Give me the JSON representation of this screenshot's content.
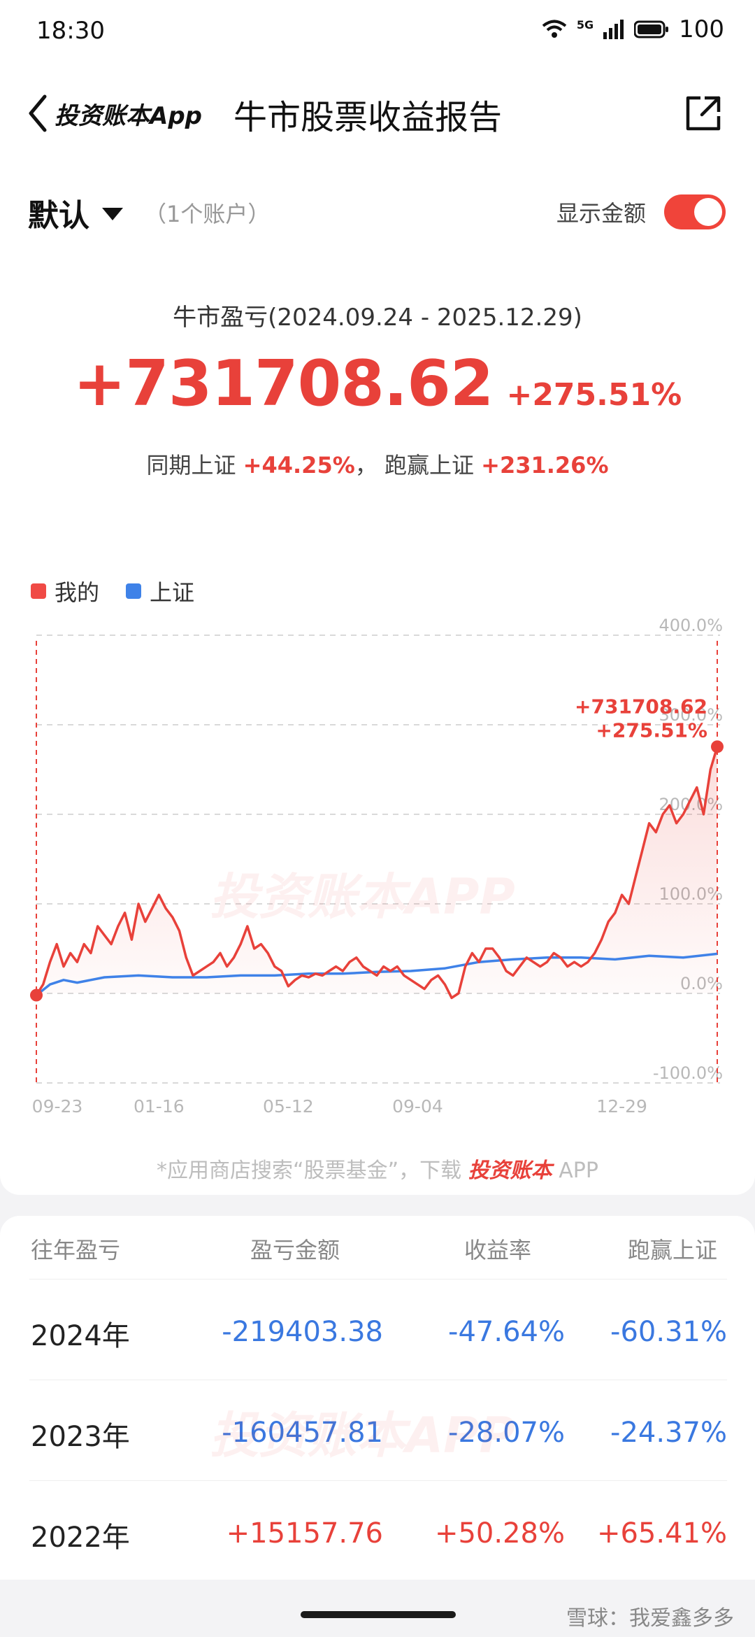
{
  "status_bar": {
    "time": "18:30",
    "network": "5G",
    "battery": "100"
  },
  "nav": {
    "app_name": "投资账本App",
    "title": "牛市股票收益报告"
  },
  "account": {
    "name": "默认",
    "count_text": "（1个账户）",
    "toggle_label": "显示金额",
    "toggle_on": true
  },
  "summary": {
    "period": "牛市盈亏(2024.09.24 - 2025.12.29)",
    "amount": "+731708.62",
    "percent": "+275.51%",
    "compare_label": "同期上证",
    "compare_value": "+44.25%",
    "separator": "，",
    "beat_label": "跑赢上证",
    "beat_value": "+231.26%"
  },
  "legend": {
    "mine": "我的",
    "index": "上证"
  },
  "colors": {
    "mine": "#e8413a",
    "index": "#3f82e8",
    "negative": "#3a78e0",
    "positive": "#e8413a"
  },
  "chart_data": {
    "type": "line",
    "ylim": [
      -100,
      400
    ],
    "y_ticks": [
      "400.0%",
      "300.0%",
      "200.0%",
      "100.0%",
      "0.0%",
      "-100.0%"
    ],
    "y_tick_values": [
      400,
      300,
      200,
      100,
      0,
      -100
    ],
    "x_tick_labels": [
      "09-23",
      "01-16",
      "05-12",
      "09-04",
      "12-29"
    ],
    "x_tick_values": [
      0,
      0.18,
      0.37,
      0.56,
      0.86
    ],
    "end_label_amount": "+731708.62",
    "end_label_percent": "+275.51%",
    "series": [
      {
        "name": "我的",
        "points": [
          [
            0,
            -2
          ],
          [
            0.01,
            10
          ],
          [
            0.02,
            35
          ],
          [
            0.03,
            55
          ],
          [
            0.04,
            30
          ],
          [
            0.05,
            45
          ],
          [
            0.06,
            35
          ],
          [
            0.07,
            55
          ],
          [
            0.08,
            45
          ],
          [
            0.09,
            75
          ],
          [
            0.1,
            65
          ],
          [
            0.11,
            55
          ],
          [
            0.12,
            75
          ],
          [
            0.13,
            90
          ],
          [
            0.14,
            60
          ],
          [
            0.15,
            100
          ],
          [
            0.16,
            80
          ],
          [
            0.17,
            95
          ],
          [
            0.18,
            110
          ],
          [
            0.19,
            95
          ],
          [
            0.2,
            85
          ],
          [
            0.21,
            70
          ],
          [
            0.22,
            40
          ],
          [
            0.23,
            20
          ],
          [
            0.24,
            25
          ],
          [
            0.25,
            30
          ],
          [
            0.26,
            35
          ],
          [
            0.27,
            45
          ],
          [
            0.28,
            30
          ],
          [
            0.29,
            40
          ],
          [
            0.3,
            55
          ],
          [
            0.31,
            75
          ],
          [
            0.32,
            50
          ],
          [
            0.33,
            55
          ],
          [
            0.34,
            45
          ],
          [
            0.35,
            30
          ],
          [
            0.36,
            25
          ],
          [
            0.37,
            8
          ],
          [
            0.38,
            15
          ],
          [
            0.39,
            20
          ],
          [
            0.4,
            18
          ],
          [
            0.41,
            22
          ],
          [
            0.42,
            20
          ],
          [
            0.43,
            25
          ],
          [
            0.44,
            30
          ],
          [
            0.45,
            25
          ],
          [
            0.46,
            35
          ],
          [
            0.47,
            40
          ],
          [
            0.48,
            30
          ],
          [
            0.49,
            25
          ],
          [
            0.5,
            20
          ],
          [
            0.51,
            30
          ],
          [
            0.52,
            25
          ],
          [
            0.53,
            30
          ],
          [
            0.54,
            20
          ],
          [
            0.55,
            15
          ],
          [
            0.56,
            10
          ],
          [
            0.57,
            5
          ],
          [
            0.58,
            15
          ],
          [
            0.59,
            20
          ],
          [
            0.6,
            10
          ],
          [
            0.61,
            -5
          ],
          [
            0.62,
            0
          ],
          [
            0.63,
            30
          ],
          [
            0.64,
            45
          ],
          [
            0.65,
            35
          ],
          [
            0.66,
            50
          ],
          [
            0.67,
            50
          ],
          [
            0.68,
            40
          ],
          [
            0.69,
            25
          ],
          [
            0.7,
            20
          ],
          [
            0.71,
            30
          ],
          [
            0.72,
            40
          ],
          [
            0.73,
            35
          ],
          [
            0.74,
            30
          ],
          [
            0.75,
            35
          ],
          [
            0.76,
            45
          ],
          [
            0.77,
            40
          ],
          [
            0.78,
            30
          ],
          [
            0.79,
            35
          ],
          [
            0.8,
            30
          ],
          [
            0.81,
            35
          ],
          [
            0.82,
            45
          ],
          [
            0.83,
            60
          ],
          [
            0.84,
            80
          ],
          [
            0.85,
            90
          ],
          [
            0.86,
            110
          ],
          [
            0.87,
            100
          ],
          [
            0.88,
            130
          ],
          [
            0.89,
            160
          ],
          [
            0.9,
            190
          ],
          [
            0.91,
            180
          ],
          [
            0.92,
            200
          ],
          [
            0.93,
            210
          ],
          [
            0.94,
            190
          ],
          [
            0.95,
            200
          ],
          [
            0.96,
            215
          ],
          [
            0.97,
            230
          ],
          [
            0.98,
            200
          ],
          [
            0.99,
            250
          ],
          [
            1.0,
            275.51
          ]
        ]
      },
      {
        "name": "上证",
        "points": [
          [
            0,
            -2
          ],
          [
            0.02,
            10
          ],
          [
            0.04,
            15
          ],
          [
            0.06,
            12
          ],
          [
            0.1,
            18
          ],
          [
            0.15,
            20
          ],
          [
            0.2,
            18
          ],
          [
            0.25,
            18
          ],
          [
            0.3,
            20
          ],
          [
            0.35,
            20
          ],
          [
            0.4,
            22
          ],
          [
            0.45,
            22
          ],
          [
            0.5,
            24
          ],
          [
            0.55,
            25
          ],
          [
            0.6,
            28
          ],
          [
            0.65,
            35
          ],
          [
            0.7,
            38
          ],
          [
            0.75,
            40
          ],
          [
            0.8,
            40
          ],
          [
            0.85,
            38
          ],
          [
            0.9,
            42
          ],
          [
            0.95,
            40
          ],
          [
            1.0,
            44.25
          ]
        ]
      }
    ]
  },
  "footnote": {
    "prefix": "*应用商店搜索“股票基金”，下载",
    "brand": "投资账本",
    "suffix": " APP"
  },
  "watermark": "投资账本APP",
  "table": {
    "headers": [
      "往年盈亏",
      "盈亏金额",
      "收益率",
      "跑赢上证"
    ],
    "rows": [
      {
        "year": "2024年",
        "amount": "-219403.38",
        "rate": "-47.64%",
        "beat": "-60.31%",
        "sign": "neg"
      },
      {
        "year": "2023年",
        "amount": "-160457.81",
        "rate": "-28.07%",
        "beat": "-24.37%",
        "sign": "neg"
      },
      {
        "year": "2022年",
        "amount": "+15157.76",
        "rate": "+50.28%",
        "beat": "+65.41%",
        "sign": "pos"
      }
    ]
  },
  "credit": "雪球：我爱鑫多多"
}
